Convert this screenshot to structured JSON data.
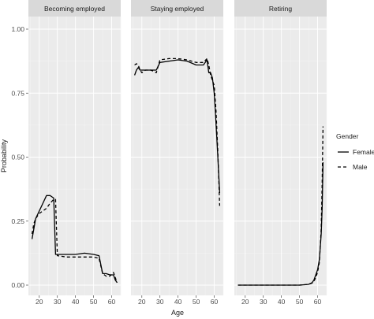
{
  "chart_data": {
    "type": "line",
    "xlabel": "Age",
    "ylabel": "Probability",
    "xlim": [
      14,
      65
    ],
    "ylim": [
      0,
      1.0
    ],
    "x_ticks": [
      20,
      30,
      40,
      50,
      60
    ],
    "y_ticks": [
      "0.00",
      "0.25",
      "0.50",
      "0.75",
      "1.00"
    ],
    "y_tick_values": [
      0,
      0.25,
      0.5,
      0.75,
      1.0
    ],
    "legend": {
      "title": "Gender",
      "position": "right",
      "entries": [
        {
          "label": "Female",
          "dash": "solid"
        },
        {
          "label": "Male",
          "dash": "dashed"
        }
      ]
    },
    "grid": true,
    "panels": [
      {
        "title": "Becoming employed",
        "series": [
          {
            "name": "Female",
            "x": [
              16,
              17,
              18,
              20,
              22,
              24,
              26,
              27,
              28,
              29,
              30,
              35,
              40,
              45,
              50,
              53,
              55,
              57,
              59,
              61,
              62,
              63
            ],
            "y": [
              0.18,
              0.22,
              0.26,
              0.29,
              0.32,
              0.35,
              0.35,
              0.345,
              0.34,
              0.12,
              0.12,
              0.12,
              0.12,
              0.125,
              0.12,
              0.115,
              0.045,
              0.045,
              0.04,
              0.04,
              0.02,
              0.01
            ]
          },
          {
            "name": "Male",
            "x": [
              16,
              17,
              18,
              20,
              22,
              24,
              26,
              28,
              29,
              30,
              35,
              40,
              45,
              50,
              53,
              55,
              57,
              59,
              61,
              62,
              63
            ],
            "y": [
              0.2,
              0.24,
              0.26,
              0.28,
              0.29,
              0.3,
              0.32,
              0.335,
              0.335,
              0.115,
              0.11,
              0.11,
              0.11,
              0.11,
              0.105,
              0.045,
              0.035,
              0.035,
              0.05,
              0.03,
              0.01
            ]
          }
        ]
      },
      {
        "title": "Staying employed",
        "series": [
          {
            "name": "Female",
            "x": [
              16,
              17,
              18,
              19,
              20,
              22,
              25,
              28,
              30,
              35,
              40,
              45,
              50,
              54,
              56,
              57,
              58,
              59,
              60,
              61,
              62,
              63
            ],
            "y": [
              0.82,
              0.84,
              0.85,
              0.84,
              0.84,
              0.84,
              0.84,
              0.84,
              0.87,
              0.875,
              0.88,
              0.875,
              0.86,
              0.86,
              0.88,
              0.83,
              0.83,
              0.81,
              0.75,
              0.63,
              0.5,
              0.36
            ]
          },
          {
            "name": "Male",
            "x": [
              16,
              17,
              18,
              19,
              20,
              22,
              25,
              28,
              30,
              35,
              40,
              45,
              50,
              54,
              56,
              57,
              58,
              59,
              60,
              61,
              62,
              63
            ],
            "y": [
              0.86,
              0.865,
              0.86,
              0.84,
              0.83,
              0.84,
              0.84,
              0.83,
              0.88,
              0.885,
              0.885,
              0.88,
              0.87,
              0.87,
              0.885,
              0.86,
              0.82,
              0.8,
              0.78,
              0.68,
              0.52,
              0.31
            ]
          }
        ]
      },
      {
        "title": "Retiring",
        "series": [
          {
            "name": "Female",
            "x": [
              16,
              20,
              30,
              40,
              50,
              55,
              57,
              58,
              59,
              60,
              61,
              62,
              62.5,
              63
            ],
            "y": [
              0,
              0,
              0,
              0,
              0,
              0.003,
              0.01,
              0.02,
              0.04,
              0.06,
              0.1,
              0.2,
              0.3,
              0.48
            ]
          },
          {
            "name": "Male",
            "x": [
              16,
              20,
              30,
              40,
              50,
              55,
              57,
              58,
              59,
              60,
              61,
              62,
              62.5,
              63
            ],
            "y": [
              0,
              0,
              0,
              0,
              0,
              0.003,
              0.008,
              0.015,
              0.03,
              0.05,
              0.09,
              0.22,
              0.4,
              0.62
            ]
          }
        ]
      }
    ]
  }
}
